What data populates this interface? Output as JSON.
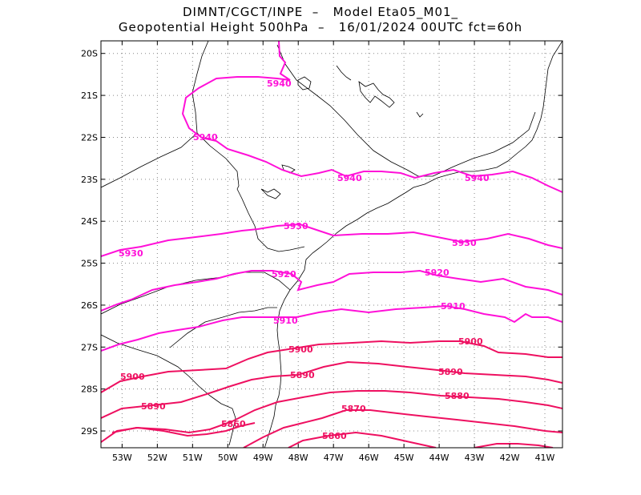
{
  "header": {
    "line1": "DIMNT/CGCT/INPE  –   Model Eta05_M01_",
    "line2": "Geopotential Height 500hPa  –   16/01/2024 00UTC fct=60h"
  },
  "map": {
    "lon_range": [
      -53.6,
      -40.5
    ],
    "lat_range": [
      -29.4,
      -19.7
    ],
    "lat_labels": [
      "20S",
      "21S",
      "22S",
      "23S",
      "24S",
      "25S",
      "26S",
      "27S",
      "28S",
      "29S"
    ],
    "lon_labels": [
      "53W",
      "52W",
      "51W",
      "50W",
      "49W",
      "48W",
      "47W",
      "46W",
      "45W",
      "44W",
      "43W",
      "42W",
      "41W"
    ]
  },
  "colors": {
    "contour_high": "#ff10d8",
    "contour_low": "#ee1060",
    "coast": "#000000",
    "grid": "#888888"
  },
  "contours": [
    {
      "value": 5940,
      "label": "5940",
      "label_lons": [
        -48.6,
        -51.2,
        -47.6,
        -42.9
      ]
    },
    {
      "value": 5930,
      "label": "5930",
      "label_lons": [
        -53.1,
        -48.5,
        -43.6
      ]
    },
    {
      "value": 5920,
      "label": "5920",
      "label_lons": [
        -48.6,
        -44.2
      ]
    },
    {
      "value": 5910,
      "label": "5910",
      "label_lons": [
        -48.8,
        -43.5
      ]
    },
    {
      "value": 5900,
      "label": "5900",
      "label_lons": [
        -52.9,
        -48.5,
        -42.9
      ]
    },
    {
      "value": 5890,
      "label": "5890",
      "label_lons": [
        -52.5,
        -48.4,
        -44.2
      ]
    },
    {
      "value": 5880,
      "label": "5880",
      "label_lons": [
        -44.1
      ]
    },
    {
      "value": 5870,
      "label": "5870",
      "label_lons": [
        -46.8
      ]
    },
    {
      "value": 5860,
      "label": "5860",
      "label_lons": [
        -49.9,
        -47.3
      ]
    }
  ]
}
